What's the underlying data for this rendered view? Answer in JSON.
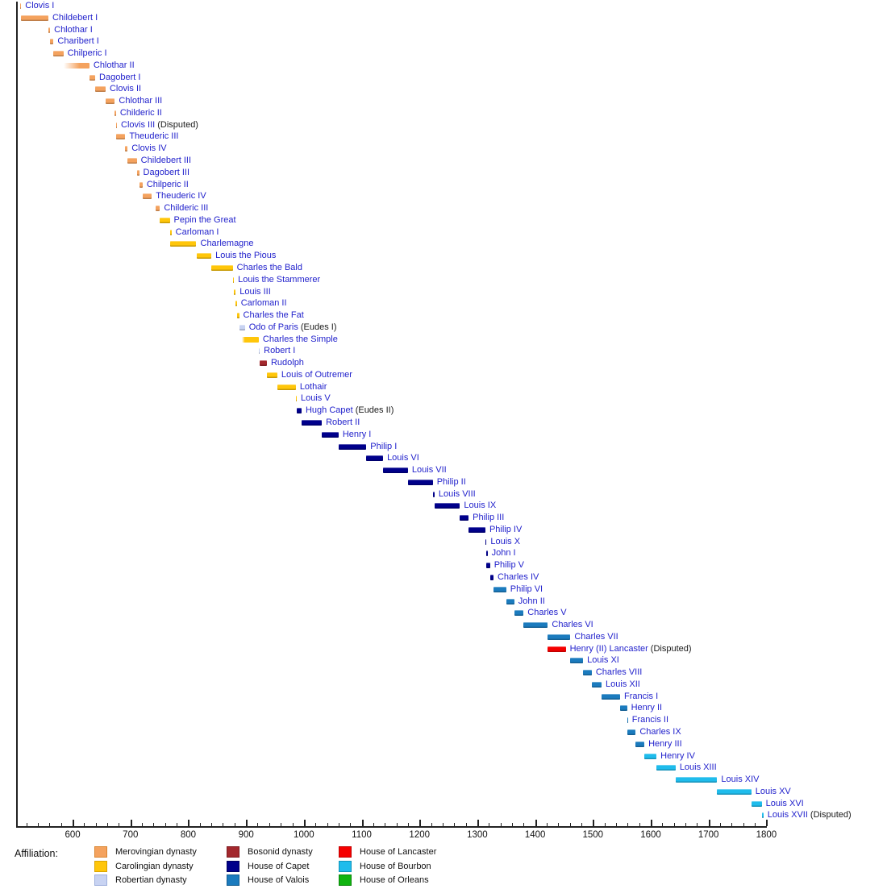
{
  "legend": {
    "title": "Affiliation:",
    "items": [
      {
        "id": "merovingian",
        "label": "Merovingian dynasty",
        "color": "#F4A25E",
        "border": "#D9852F",
        "column": 0,
        "row": 0
      },
      {
        "id": "carolingian",
        "label": "Carolingian dynasty",
        "color": "#FFC60A",
        "border": "#D9A400",
        "column": 0,
        "row": 1
      },
      {
        "id": "robertian",
        "label": "Robertian dynasty",
        "color": "#C8D3F2",
        "border": "#9FB0DC",
        "column": 0,
        "row": 2
      },
      {
        "id": "bosonid",
        "label": "Bosonid dynasty",
        "color": "#A3282D",
        "border": "#7E1A1F",
        "column": 1,
        "row": 0
      },
      {
        "id": "capet",
        "label": "House of Capet",
        "color": "#00008B",
        "border": "#000060",
        "column": 1,
        "row": 1
      },
      {
        "id": "valois",
        "label": "House of Valois",
        "color": "#1B7BBE",
        "border": "#135C90",
        "column": 1,
        "row": 2
      },
      {
        "id": "lancaster",
        "label": "House of Lancaster",
        "color": "#F50000",
        "border": "#C00000",
        "column": 2,
        "row": 0
      },
      {
        "id": "bourbon",
        "label": "House of Bourbon",
        "color": "#1FBCEC",
        "border": "#0E93BA",
        "column": 2,
        "row": 1
      },
      {
        "id": "orleans",
        "label": "House of Orleans",
        "color": "#10B410",
        "border": "#0A850A",
        "column": 2,
        "row": 2
      }
    ]
  },
  "chart_data": {
    "type": "bar",
    "subtype": "timeline-gantt",
    "title": "",
    "xlabel": "",
    "ylabel": "",
    "x_axis": {
      "range": [
        500,
        1800
      ],
      "major_tick_step": 100,
      "minor_tick_step": 20,
      "major_tick_labels": [
        "600",
        "700",
        "800",
        "900",
        "1000",
        "1100",
        "1200",
        "1300",
        "1400",
        "1500",
        "1600",
        "1700",
        "1800"
      ],
      "major_tick_values": [
        600,
        700,
        800,
        900,
        1000,
        1100,
        1200,
        1300,
        1400,
        1500,
        1600,
        1700,
        1800
      ]
    },
    "grid": false,
    "legend_position": "bottom",
    "series": [
      {
        "label": "Clovis I",
        "note": "",
        "start": 509,
        "end": 511,
        "house": "merovingian"
      },
      {
        "label": "Childebert I",
        "note": "",
        "start": 511,
        "end": 558,
        "house": "merovingian"
      },
      {
        "label": "Chlothar I",
        "note": "",
        "start": 558,
        "end": 561,
        "house": "merovingian"
      },
      {
        "label": "Charibert I",
        "note": "",
        "start": 561,
        "end": 567,
        "house": "merovingian"
      },
      {
        "label": "Chilperic I",
        "note": "",
        "start": 567,
        "end": 584,
        "house": "merovingian"
      },
      {
        "label": "Chlothar II",
        "note": "",
        "start": 584,
        "end": 629,
        "house": "merovingian",
        "fade_until": 612
      },
      {
        "label": "Dagobert I",
        "note": "",
        "start": 629,
        "end": 639,
        "house": "merovingian"
      },
      {
        "label": "Clovis II",
        "note": "",
        "start": 639,
        "end": 657,
        "house": "merovingian"
      },
      {
        "label": "Chlothar III",
        "note": "",
        "start": 657,
        "end": 673,
        "house": "merovingian"
      },
      {
        "label": "Childeric II",
        "note": "",
        "start": 673,
        "end": 675,
        "house": "merovingian"
      },
      {
        "label": "Clovis III",
        "note": "(Disputed)",
        "start": 675,
        "end": 676,
        "house": "merovingian"
      },
      {
        "label": "Theuderic III",
        "note": "",
        "start": 675,
        "end": 691,
        "house": "merovingian"
      },
      {
        "label": "Clovis IV",
        "note": "",
        "start": 691,
        "end": 695,
        "house": "merovingian"
      },
      {
        "label": "Childebert III",
        "note": "",
        "start": 695,
        "end": 711,
        "house": "merovingian"
      },
      {
        "label": "Dagobert III",
        "note": "",
        "start": 711,
        "end": 715,
        "house": "merovingian"
      },
      {
        "label": "Chilperic II",
        "note": "",
        "start": 715,
        "end": 721,
        "house": "merovingian"
      },
      {
        "label": "Theuderic IV",
        "note": "",
        "start": 721,
        "end": 737,
        "house": "merovingian"
      },
      {
        "label": "Childeric III",
        "note": "",
        "start": 743,
        "end": 751,
        "house": "merovingian"
      },
      {
        "label": "Pepin the Great",
        "note": "",
        "start": 751,
        "end": 768,
        "house": "carolingian"
      },
      {
        "label": "Carloman I",
        "note": "",
        "start": 768,
        "end": 771,
        "house": "carolingian"
      },
      {
        "label": "Charlemagne",
        "note": "",
        "start": 768,
        "end": 814,
        "house": "carolingian"
      },
      {
        "label": "Louis the Pious",
        "note": "",
        "start": 814,
        "end": 840,
        "house": "carolingian"
      },
      {
        "label": "Charles the Bald",
        "note": "",
        "start": 840,
        "end": 877,
        "house": "carolingian"
      },
      {
        "label": "Louis the Stammerer",
        "note": "",
        "start": 877,
        "end": 879,
        "house": "carolingian"
      },
      {
        "label": "Louis III",
        "note": "",
        "start": 879,
        "end": 882,
        "house": "carolingian"
      },
      {
        "label": "Carloman II",
        "note": "",
        "start": 882,
        "end": 884,
        "house": "carolingian"
      },
      {
        "label": "Charles the Fat",
        "note": "",
        "start": 885,
        "end": 888,
        "house": "carolingian"
      },
      {
        "label": "Odo of Paris",
        "note": "(Eudes I)",
        "start": 888,
        "end": 898,
        "house": "robertian"
      },
      {
        "label": "Charles the Simple",
        "note": "",
        "start": 893,
        "end": 922,
        "house": "carolingian",
        "fade_until": 898
      },
      {
        "label": "Robert I",
        "note": "",
        "start": 922,
        "end": 923,
        "house": "robertian"
      },
      {
        "label": "Rudolph",
        "note": "",
        "start": 923,
        "end": 936,
        "house": "bosonid"
      },
      {
        "label": "Louis of Outremer",
        "note": "",
        "start": 936,
        "end": 954,
        "house": "carolingian"
      },
      {
        "label": "Lothair",
        "note": "",
        "start": 954,
        "end": 986,
        "house": "carolingian"
      },
      {
        "label": "Louis V",
        "note": "",
        "start": 986,
        "end": 987,
        "house": "carolingian"
      },
      {
        "label": "Hugh Capet",
        "note": "(Eudes II)",
        "start": 987,
        "end": 996,
        "house": "capet"
      },
      {
        "label": "Robert II",
        "note": "",
        "start": 996,
        "end": 1031,
        "house": "capet"
      },
      {
        "label": "Henry I",
        "note": "",
        "start": 1031,
        "end": 1060,
        "house": "capet"
      },
      {
        "label": "Philip I",
        "note": "",
        "start": 1060,
        "end": 1108,
        "house": "capet"
      },
      {
        "label": "Louis VI",
        "note": "",
        "start": 1108,
        "end": 1137,
        "house": "capet"
      },
      {
        "label": "Louis VII",
        "note": "",
        "start": 1137,
        "end": 1180,
        "house": "capet"
      },
      {
        "label": "Philip II",
        "note": "",
        "start": 1180,
        "end": 1223,
        "house": "capet"
      },
      {
        "label": "Louis VIII",
        "note": "",
        "start": 1223,
        "end": 1226,
        "house": "capet"
      },
      {
        "label": "Louis IX",
        "note": "",
        "start": 1226,
        "end": 1270,
        "house": "capet"
      },
      {
        "label": "Philip III",
        "note": "",
        "start": 1270,
        "end": 1285,
        "house": "capet"
      },
      {
        "label": "Philip IV",
        "note": "",
        "start": 1285,
        "end": 1314,
        "house": "capet"
      },
      {
        "label": "Louis X",
        "note": "",
        "start": 1314,
        "end": 1316,
        "house": "capet"
      },
      {
        "label": "John I",
        "note": "",
        "start": 1316,
        "end": 1316,
        "house": "capet"
      },
      {
        "label": "Philip V",
        "note": "",
        "start": 1316,
        "end": 1322,
        "house": "capet"
      },
      {
        "label": "Charles IV",
        "note": "",
        "start": 1322,
        "end": 1328,
        "house": "capet"
      },
      {
        "label": "Philip VI",
        "note": "",
        "start": 1328,
        "end": 1350,
        "house": "valois"
      },
      {
        "label": "John II",
        "note": "",
        "start": 1350,
        "end": 1364,
        "house": "valois"
      },
      {
        "label": "Charles V",
        "note": "",
        "start": 1364,
        "end": 1380,
        "house": "valois"
      },
      {
        "label": "Charles VI",
        "note": "",
        "start": 1380,
        "end": 1422,
        "house": "valois"
      },
      {
        "label": "Charles VII",
        "note": "",
        "start": 1422,
        "end": 1461,
        "house": "valois"
      },
      {
        "label": "Henry (II) Lancaster",
        "note": "(Disputed)",
        "start": 1422,
        "end": 1453,
        "house": "lancaster"
      },
      {
        "label": "Louis XI",
        "note": "",
        "start": 1461,
        "end": 1483,
        "house": "valois"
      },
      {
        "label": "Charles VIII",
        "note": "",
        "start": 1483,
        "end": 1498,
        "house": "valois"
      },
      {
        "label": "Louis XII",
        "note": "",
        "start": 1498,
        "end": 1515,
        "house": "valois"
      },
      {
        "label": "Francis I",
        "note": "",
        "start": 1515,
        "end": 1547,
        "house": "valois"
      },
      {
        "label": "Henry II",
        "note": "",
        "start": 1547,
        "end": 1559,
        "house": "valois"
      },
      {
        "label": "Francis II",
        "note": "",
        "start": 1559,
        "end": 1560,
        "house": "valois"
      },
      {
        "label": "Charles IX",
        "note": "",
        "start": 1560,
        "end": 1574,
        "house": "valois"
      },
      {
        "label": "Henry III",
        "note": "",
        "start": 1574,
        "end": 1589,
        "house": "valois"
      },
      {
        "label": "Henry IV",
        "note": "",
        "start": 1589,
        "end": 1610,
        "house": "bourbon"
      },
      {
        "label": "Louis XIII",
        "note": "",
        "start": 1610,
        "end": 1643,
        "house": "bourbon"
      },
      {
        "label": "Louis XIV",
        "note": "",
        "start": 1643,
        "end": 1715,
        "house": "bourbon"
      },
      {
        "label": "Louis XV",
        "note": "",
        "start": 1715,
        "end": 1774,
        "house": "bourbon"
      },
      {
        "label": "Louis XVI",
        "note": "",
        "start": 1774,
        "end": 1792,
        "house": "bourbon"
      },
      {
        "label": "Louis XVII",
        "note": "(Disputed)",
        "start": 1792,
        "end": 1795,
        "house": "bourbon"
      }
    ],
    "name_color": "#2222CC",
    "note_color": "#1a1a1a"
  }
}
